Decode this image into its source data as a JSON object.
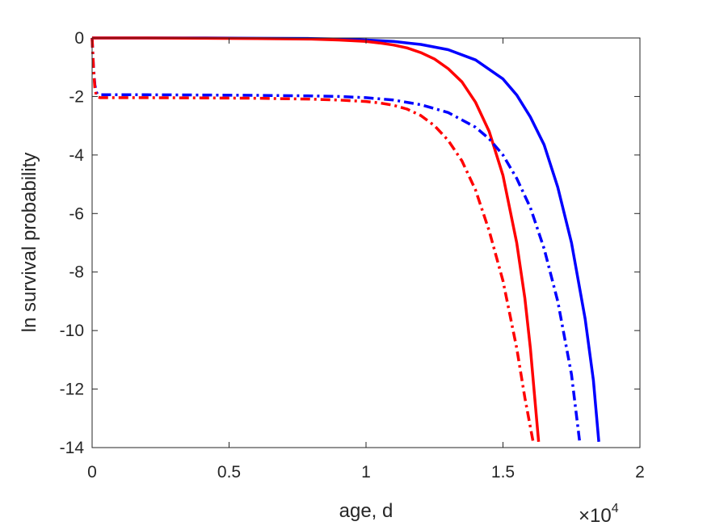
{
  "chart_data": {
    "type": "line",
    "title": "",
    "xlabel": "age, d",
    "ylabel": "ln survival probability",
    "x_exponent_label": {
      "base": "×10",
      "power": "4"
    },
    "xlim": [
      0,
      2
    ],
    "ylim": [
      -14,
      0
    ],
    "xticks": [
      "0",
      "0.5",
      "1",
      "1.5",
      "2"
    ],
    "xtick_values": [
      0,
      0.5,
      1,
      1.5,
      2
    ],
    "yticks": [
      "0",
      "-2",
      "-4",
      "-6",
      "-8",
      "-10",
      "-12",
      "-14"
    ],
    "ytick_values": [
      0,
      -2,
      -4,
      -6,
      -8,
      -10,
      -12,
      -14
    ],
    "grid": false,
    "box": true,
    "series": [
      {
        "color": "#0000ff",
        "style": "solid",
        "x": [
          0,
          0.2,
          0.4,
          0.6,
          0.8,
          0.9,
          1.0,
          1.1,
          1.2,
          1.3,
          1.4,
          1.5,
          1.55,
          1.6,
          1.65,
          1.7,
          1.75,
          1.8,
          1.83,
          1.85
        ],
        "y": [
          0,
          0,
          0,
          -0.01,
          -0.02,
          -0.04,
          -0.07,
          -0.12,
          -0.22,
          -0.4,
          -0.75,
          -1.4,
          -1.95,
          -2.7,
          -3.65,
          -5.1,
          -7.0,
          -9.6,
          -11.7,
          -13.8
        ]
      },
      {
        "color": "#ff0000",
        "style": "solid",
        "x": [
          0,
          0.2,
          0.4,
          0.6,
          0.8,
          0.9,
          1.0,
          1.05,
          1.1,
          1.15,
          1.2,
          1.25,
          1.3,
          1.35,
          1.4,
          1.45,
          1.5,
          1.55,
          1.58,
          1.6,
          1.63
        ],
        "y": [
          0,
          0,
          -0.01,
          -0.02,
          -0.04,
          -0.07,
          -0.12,
          -0.17,
          -0.24,
          -0.34,
          -0.5,
          -0.72,
          -1.05,
          -1.5,
          -2.2,
          -3.2,
          -4.7,
          -7.0,
          -8.9,
          -10.6,
          -13.8
        ]
      },
      {
        "color": "#0000ff",
        "style": "dashdot",
        "x": [
          0,
          0.005,
          0.01,
          0.015,
          0.02,
          0.03,
          0.05,
          0.2,
          0.4,
          0.6,
          0.8,
          0.9,
          1.0,
          1.1,
          1.2,
          1.3,
          1.4,
          1.45,
          1.5,
          1.55,
          1.6,
          1.65,
          1.7,
          1.75,
          1.78
        ],
        "y": [
          0,
          -1.0,
          -1.6,
          -1.85,
          -1.92,
          -1.94,
          -1.94,
          -1.94,
          -1.95,
          -1.96,
          -1.98,
          -2.0,
          -2.04,
          -2.12,
          -2.28,
          -2.55,
          -3.05,
          -3.45,
          -4.0,
          -4.8,
          -5.8,
          -7.2,
          -9.0,
          -11.5,
          -13.8
        ]
      },
      {
        "color": "#ff0000",
        "style": "dashdot",
        "x": [
          0,
          0.005,
          0.01,
          0.015,
          0.02,
          0.03,
          0.05,
          0.2,
          0.4,
          0.6,
          0.8,
          0.9,
          1.0,
          1.05,
          1.1,
          1.15,
          1.2,
          1.25,
          1.3,
          1.35,
          1.4,
          1.45,
          1.5,
          1.55,
          1.58,
          1.61
        ],
        "y": [
          0,
          -1.05,
          -1.7,
          -1.95,
          -2.02,
          -2.04,
          -2.04,
          -2.04,
          -2.05,
          -2.06,
          -2.09,
          -2.12,
          -2.17,
          -2.22,
          -2.3,
          -2.43,
          -2.65,
          -3.0,
          -3.5,
          -4.2,
          -5.2,
          -6.6,
          -8.3,
          -10.6,
          -12.3,
          -13.8
        ]
      }
    ]
  }
}
